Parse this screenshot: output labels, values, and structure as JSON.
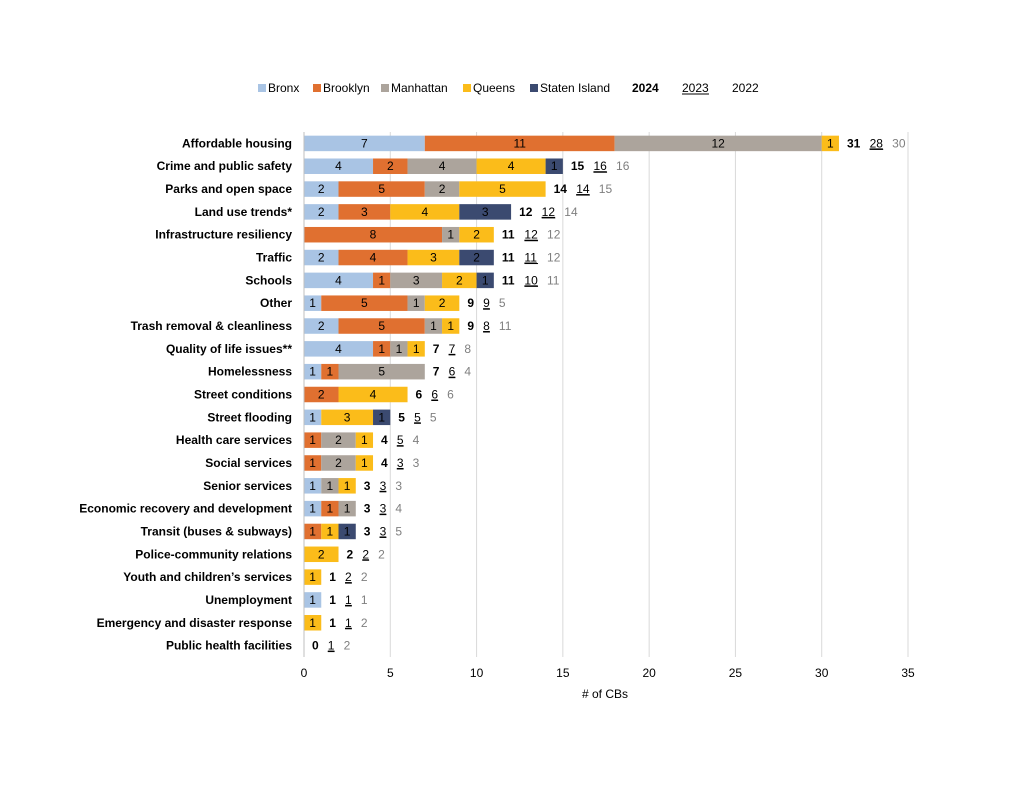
{
  "chart_data": {
    "type": "bar",
    "orientation": "horizontal",
    "stacked": true,
    "xlabel": "# of CBs",
    "xlim": [
      0,
      35
    ],
    "xticks": [
      0,
      5,
      10,
      15,
      20,
      25,
      30,
      35
    ],
    "grid": true,
    "legend_position": "top",
    "series_names": [
      "Bronx",
      "Brooklyn",
      "Manhattan",
      "Queens",
      "Staten Island"
    ],
    "series_colors": [
      "#a9c4e4",
      "#e07030",
      "#aca49c",
      "#fbbc1a",
      "#3b4a70"
    ],
    "totals_legend": [
      "2024",
      "2023",
      "2022"
    ],
    "totals_colors": [
      "#000000",
      "#000000",
      "#7f7f7f"
    ],
    "categories": [
      "Affordable housing",
      "Crime and public safety",
      "Parks and open space",
      "Land use trends*",
      "Infrastructure resiliency",
      "Traffic",
      "Schools",
      "Other",
      "Trash removal & cleanliness",
      "Quality of life issues**",
      "Homelessness",
      "Street conditions",
      "Street flooding",
      "Health care services",
      "Social services",
      "Senior services",
      "Economic recovery and development",
      "Transit (buses & subways)",
      "Police-community relations",
      "Youth and children’s services",
      "Unemployment",
      "Emergency and disaster response",
      "Public health facilities"
    ],
    "series": [
      {
        "name": "Bronx",
        "values": [
          7,
          4,
          2,
          2,
          0,
          2,
          4,
          1,
          2,
          4,
          1,
          0,
          1,
          0,
          0,
          1,
          1,
          0,
          0,
          0,
          1,
          0,
          0
        ]
      },
      {
        "name": "Brooklyn",
        "values": [
          11,
          2,
          5,
          3,
          8,
          4,
          1,
          5,
          5,
          1,
          1,
          2,
          0,
          1,
          1,
          0,
          1,
          1,
          0,
          0,
          0,
          0,
          0
        ]
      },
      {
        "name": "Manhattan",
        "values": [
          12,
          4,
          2,
          0,
          1,
          0,
          3,
          1,
          1,
          1,
          5,
          0,
          0,
          2,
          2,
          1,
          1,
          0,
          0,
          0,
          0,
          0,
          0
        ]
      },
      {
        "name": "Queens",
        "values": [
          1,
          4,
          5,
          4,
          2,
          3,
          2,
          2,
          1,
          1,
          0,
          4,
          3,
          1,
          1,
          1,
          0,
          1,
          2,
          1,
          0,
          1,
          0
        ]
      },
      {
        "name": "Staten Island",
        "values": [
          0,
          1,
          0,
          3,
          0,
          2,
          1,
          0,
          0,
          0,
          0,
          0,
          1,
          0,
          0,
          0,
          0,
          1,
          0,
          0,
          0,
          0,
          0
        ]
      }
    ],
    "totals_2024": [
      31,
      15,
      14,
      12,
      11,
      11,
      11,
      9,
      9,
      7,
      7,
      6,
      5,
      4,
      4,
      3,
      3,
      3,
      2,
      1,
      1,
      1,
      0
    ],
    "totals_2023": [
      28,
      16,
      14,
      12,
      12,
      11,
      10,
      9,
      8,
      7,
      6,
      6,
      5,
      5,
      3,
      3,
      3,
      3,
      2,
      2,
      1,
      1,
      1
    ],
    "totals_2022": [
      30,
      16,
      15,
      14,
      12,
      12,
      11,
      5,
      11,
      8,
      4,
      6,
      5,
      4,
      3,
      3,
      4,
      5,
      2,
      2,
      1,
      2,
      2
    ]
  }
}
